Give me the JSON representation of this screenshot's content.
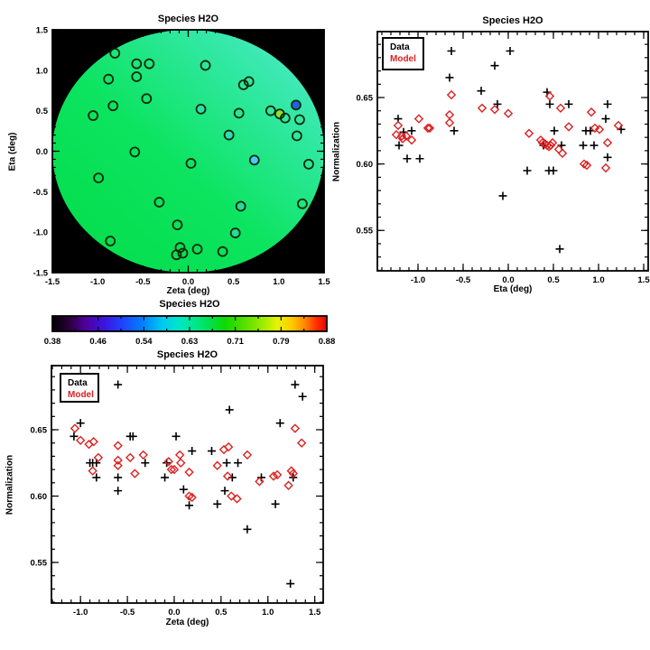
{
  "page": {
    "background": "#ffffff"
  },
  "colors": {
    "frame": "#000000",
    "text": "#000000",
    "map_background": "#000000",
    "marker_outline": "#0a2a0a",
    "data_series": "#000000",
    "model_series": "#dd2020"
  },
  "chart_data": [
    {
      "id": "map",
      "type": "scatter",
      "title": "Species H2O",
      "xlabel": "Zeta (deg)",
      "ylabel": "Eta (deg)",
      "xlim": [
        -1.5,
        1.5
      ],
      "ylim": [
        -1.5,
        1.5
      ],
      "xticks": [
        -1.5,
        -1.0,
        -0.5,
        0.0,
        0.5,
        1.0,
        1.5
      ],
      "xtick_labels": [
        "-1.5",
        "-1.0",
        "-0.5",
        "0.0",
        "0.5",
        "1.0",
        "1.5"
      ],
      "yticks": [
        -1.5,
        -1.0,
        -0.5,
        0.0,
        0.5,
        1.0,
        1.5
      ],
      "ytick_labels": [
        "-1.5",
        "-1.0",
        "-0.5",
        "0.0",
        "0.5",
        "1.0",
        "1.5"
      ],
      "x_minor": 0.1,
      "y_minor": 0.1,
      "background": "#000000",
      "disk": {
        "cx": 0,
        "cy": 0,
        "r": 1.5,
        "gradient": [
          "#02dc46",
          "#0ce460",
          "#30e8a2",
          "#58ead6"
        ]
      },
      "points": [
        [
          -0.81,
          1.21,
          null
        ],
        [
          -0.57,
          1.08,
          null
        ],
        [
          -0.43,
          1.08,
          null
        ],
        [
          -0.57,
          0.92,
          null
        ],
        [
          -0.88,
          0.89,
          null
        ],
        [
          0.19,
          1.06,
          null
        ],
        [
          0.61,
          0.82,
          null
        ],
        [
          0.67,
          0.86,
          null
        ],
        [
          -0.46,
          0.65,
          null
        ],
        [
          -0.83,
          0.56,
          null
        ],
        [
          1.19,
          0.57,
          "#1f63e0"
        ],
        [
          0.91,
          0.5,
          null
        ],
        [
          1.01,
          0.46,
          "#8ee02e"
        ],
        [
          1.07,
          0.41,
          null
        ],
        [
          1.23,
          0.39,
          null
        ],
        [
          -1.05,
          0.44,
          null
        ],
        [
          0.14,
          0.52,
          "#30ddb0"
        ],
        [
          0.56,
          0.47,
          null
        ],
        [
          0.45,
          0.2,
          "#30ddb0"
        ],
        [
          1.2,
          0.19,
          null
        ],
        [
          -0.59,
          -0.01,
          null
        ],
        [
          0.03,
          -0.15,
          null
        ],
        [
          0.73,
          -0.11,
          "#4cc8f5"
        ],
        [
          1.33,
          -0.16,
          null
        ],
        [
          -0.99,
          -0.33,
          null
        ],
        [
          -0.32,
          -0.63,
          null
        ],
        [
          0.58,
          -0.68,
          "#28d89c"
        ],
        [
          1.26,
          -0.65,
          null
        ],
        [
          -0.12,
          -0.91,
          null
        ],
        [
          0.52,
          -1.01,
          "#28d89c"
        ],
        [
          -0.86,
          -1.11,
          null
        ],
        [
          -0.09,
          -1.19,
          null
        ],
        [
          0.1,
          -1.21,
          null
        ],
        [
          -0.06,
          -1.26,
          null
        ],
        [
          -0.13,
          -1.28,
          null
        ],
        [
          0.38,
          -1.24,
          null
        ]
      ]
    },
    {
      "id": "eta_profile",
      "type": "scatter",
      "title": "Species H2O",
      "xlabel": "Eta (deg)",
      "ylabel": "Normalization",
      "xlim": [
        -1.45,
        1.55
      ],
      "ylim": [
        0.5196,
        0.6996
      ],
      "xticks": [
        -1.0,
        -0.5,
        0.0,
        0.5,
        1.0,
        1.5
      ],
      "xtick_labels": [
        "-1.0",
        "-0.5",
        "0.0",
        "0.5",
        "1.0",
        "1.5"
      ],
      "yticks": [
        0.55,
        0.6,
        0.65
      ],
      "ytick_labels": [
        "0.55",
        "0.60",
        "0.65"
      ],
      "x_minor": 0.1,
      "y_minor": 0.01,
      "series": [
        {
          "name": "Data",
          "marker": "plus",
          "color": "#000000",
          "points": [
            [
              -1.22,
              0.634
            ],
            [
              -1.21,
              0.614
            ],
            [
              -1.16,
              0.624
            ],
            [
              -1.12,
              0.604
            ],
            [
              -1.07,
              0.625
            ],
            [
              -0.98,
              0.604
            ],
            [
              -0.65,
              0.665
            ],
            [
              -0.63,
              0.685
            ],
            [
              -0.6,
              0.625
            ],
            [
              -0.3,
              0.655
            ],
            [
              -0.15,
              0.674
            ],
            [
              -0.12,
              0.645
            ],
            [
              -0.06,
              0.576
            ],
            [
              0.02,
              0.685
            ],
            [
              0.21,
              0.595
            ],
            [
              0.39,
              0.614
            ],
            [
              0.43,
              0.654
            ],
            [
              0.45,
              0.595
            ],
            [
              0.46,
              0.645
            ],
            [
              0.5,
              0.595
            ],
            [
              0.51,
              0.625
            ],
            [
              0.57,
              0.536
            ],
            [
              0.59,
              0.614
            ],
            [
              0.67,
              0.645
            ],
            [
              0.83,
              0.614
            ],
            [
              0.86,
              0.625
            ],
            [
              0.91,
              0.625
            ],
            [
              0.95,
              0.614
            ],
            [
              1.08,
              0.634
            ],
            [
              1.1,
              0.645
            ],
            [
              1.1,
              0.605
            ],
            [
              1.25,
              0.626
            ]
          ]
        },
        {
          "name": "Model",
          "marker": "diamond",
          "color": "#dd2020",
          "points": [
            [
              -1.24,
              0.622
            ],
            [
              -1.22,
              0.629
            ],
            [
              -1.18,
              0.621
            ],
            [
              -1.17,
              0.619
            ],
            [
              -1.13,
              0.621
            ],
            [
              -1.07,
              0.618
            ],
            [
              -0.99,
              0.634
            ],
            [
              -0.89,
              0.627
            ],
            [
              -0.87,
              0.627
            ],
            [
              -0.65,
              0.637
            ],
            [
              -0.65,
              0.631
            ],
            [
              -0.63,
              0.652
            ],
            [
              -0.29,
              0.642
            ],
            [
              -0.15,
              0.641
            ],
            [
              0.0,
              0.638
            ],
            [
              0.23,
              0.623
            ],
            [
              0.36,
              0.618
            ],
            [
              0.38,
              0.616
            ],
            [
              0.41,
              0.615
            ],
            [
              0.43,
              0.614
            ],
            [
              0.45,
              0.613
            ],
            [
              0.46,
              0.651
            ],
            [
              0.47,
              0.614
            ],
            [
              0.49,
              0.616
            ],
            [
              0.56,
              0.611
            ],
            [
              0.58,
              0.642
            ],
            [
              0.6,
              0.608
            ],
            [
              0.67,
              0.628
            ],
            [
              0.84,
              0.6
            ],
            [
              0.87,
              0.599
            ],
            [
              0.92,
              0.639
            ],
            [
              0.96,
              0.627
            ],
            [
              1.01,
              0.626
            ],
            [
              1.08,
              0.597
            ],
            [
              1.1,
              0.616
            ],
            [
              1.22,
              0.629
            ]
          ]
        }
      ]
    },
    {
      "id": "colorbar",
      "type": "colorbar",
      "title": "Species H2O",
      "range": [
        0.38,
        0.88
      ],
      "tick_labels": [
        "0.38",
        "0.46",
        "0.54",
        "0.63",
        "0.71",
        "0.79",
        "0.88"
      ],
      "gradient": [
        [
          "#000000",
          0
        ],
        [
          "#2a0038",
          0.06
        ],
        [
          "#50009e",
          0.12
        ],
        [
          "#3c14e0",
          0.19
        ],
        [
          "#1e46ff",
          0.26
        ],
        [
          "#0082ff",
          0.33
        ],
        [
          "#00c8f0",
          0.4
        ],
        [
          "#00e6c8",
          0.46
        ],
        [
          "#00e88c",
          0.52
        ],
        [
          "#00e050",
          0.57
        ],
        [
          "#10d800",
          0.63
        ],
        [
          "#55e000",
          0.7
        ],
        [
          "#a0ec00",
          0.77
        ],
        [
          "#e6f400",
          0.82
        ],
        [
          "#ffcc00",
          0.87
        ],
        [
          "#ff8800",
          0.92
        ],
        [
          "#ff3300",
          0.96
        ],
        [
          "#ee0000",
          1
        ]
      ]
    },
    {
      "id": "zeta_profile",
      "type": "scatter",
      "title": "Species H2O",
      "xlabel": "Zeta (deg)",
      "ylabel": "Normalization",
      "xlim": [
        -1.31,
        1.59
      ],
      "ylim": [
        0.5194,
        0.6983
      ],
      "xticks": [
        -1.0,
        -0.5,
        0.0,
        0.5,
        1.0,
        1.5
      ],
      "xtick_labels": [
        "-1.0",
        "-0.5",
        "0.0",
        "0.5",
        "1.0",
        "1.5"
      ],
      "yticks": [
        0.55,
        0.6,
        0.65
      ],
      "ytick_labels": [
        "0.55",
        "0.60",
        "0.65"
      ],
      "x_minor": 0.1,
      "y_minor": 0.01,
      "series": [
        {
          "name": "Data",
          "marker": "plus",
          "color": "#000000",
          "points": [
            [
              -1.07,
              0.645
            ],
            [
              -1.0,
              0.655
            ],
            [
              -0.9,
              0.625
            ],
            [
              -0.87,
              0.625
            ],
            [
              -0.83,
              0.625
            ],
            [
              -0.83,
              0.614
            ],
            [
              -0.6,
              0.684
            ],
            [
              -0.6,
              0.614
            ],
            [
              -0.6,
              0.604
            ],
            [
              -0.47,
              0.645
            ],
            [
              -0.44,
              0.645
            ],
            [
              -0.31,
              0.625
            ],
            [
              -0.1,
              0.614
            ],
            [
              -0.08,
              0.625
            ],
            [
              0.02,
              0.645
            ],
            [
              0.1,
              0.605
            ],
            [
              0.16,
              0.593
            ],
            [
              0.19,
              0.634
            ],
            [
              0.4,
              0.634
            ],
            [
              0.46,
              0.594
            ],
            [
              0.54,
              0.604
            ],
            [
              0.56,
              0.625
            ],
            [
              0.59,
              0.665
            ],
            [
              0.62,
              0.614
            ],
            [
              0.68,
              0.625
            ],
            [
              0.78,
              0.575
            ],
            [
              0.93,
              0.614
            ],
            [
              1.08,
              0.594
            ],
            [
              1.13,
              0.655
            ],
            [
              1.24,
              0.534
            ],
            [
              1.27,
              0.614
            ],
            [
              1.29,
              0.684
            ],
            [
              1.37,
              0.675
            ]
          ]
        },
        {
          "name": "Model",
          "marker": "diamond",
          "color": "#dd2020",
          "points": [
            [
              -1.06,
              0.651
            ],
            [
              -1.0,
              0.642
            ],
            [
              -0.91,
              0.639
            ],
            [
              -0.87,
              0.619
            ],
            [
              -0.86,
              0.641
            ],
            [
              -0.81,
              0.629
            ],
            [
              -0.6,
              0.638
            ],
            [
              -0.6,
              0.627
            ],
            [
              -0.6,
              0.623
            ],
            [
              -0.47,
              0.629
            ],
            [
              -0.42,
              0.617
            ],
            [
              -0.33,
              0.631
            ],
            [
              -0.06,
              0.626
            ],
            [
              -0.03,
              0.62
            ],
            [
              0.0,
              0.62
            ],
            [
              0.06,
              0.631
            ],
            [
              0.07,
              0.625
            ],
            [
              0.16,
              0.618
            ],
            [
              0.16,
              0.6
            ],
            [
              0.19,
              0.599
            ],
            [
              0.46,
              0.623
            ],
            [
              0.53,
              0.635
            ],
            [
              0.57,
              0.615
            ],
            [
              0.58,
              0.637
            ],
            [
              0.61,
              0.6
            ],
            [
              0.67,
              0.598
            ],
            [
              0.78,
              0.631
            ],
            [
              0.91,
              0.611
            ],
            [
              1.06,
              0.615
            ],
            [
              1.1,
              0.616
            ],
            [
              1.22,
              0.608
            ],
            [
              1.25,
              0.619
            ],
            [
              1.27,
              0.617
            ],
            [
              1.29,
              0.651
            ],
            [
              1.36,
              0.64
            ]
          ]
        }
      ]
    }
  ]
}
